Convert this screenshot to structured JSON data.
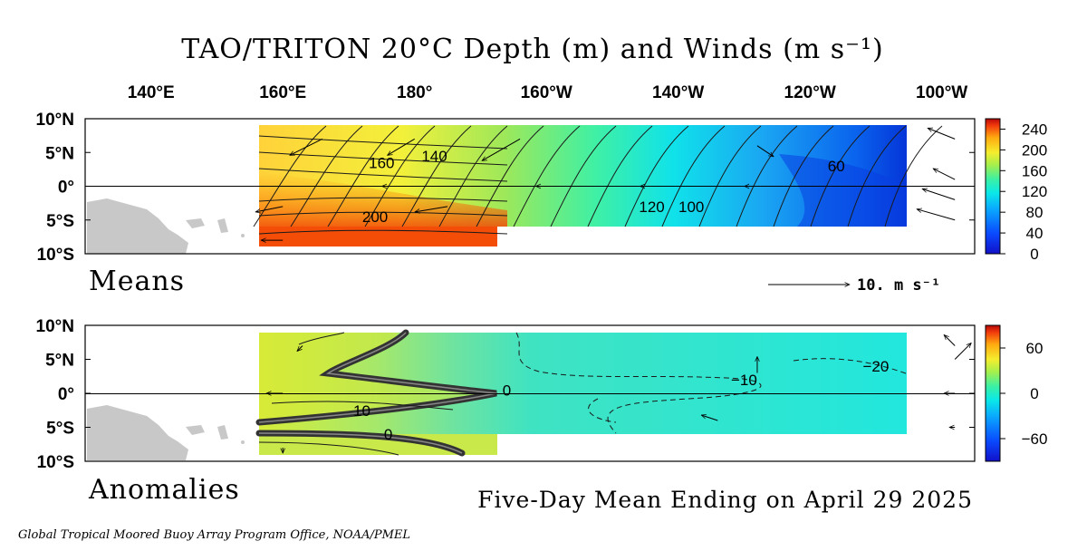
{
  "title": "TAO/TRITON 20°C Depth (m) and Winds (m s⁻¹)",
  "subtitle": "Five-Day Mean Ending on April 29 2025",
  "credit": "Global Tropical Moored Buoy Array Program Office, NOAA/PMEL",
  "wind_scale_label": "10.  m s⁻¹",
  "chart_data": [
    {
      "panel": "Means",
      "type": "heatmap",
      "title": "TAO/TRITON 20°C Depth (m) and Winds (m s⁻¹)",
      "xlabel": "",
      "ylabel": "",
      "x_ticks": [
        "140°E",
        "160°E",
        "180°",
        "160°W",
        "140°W",
        "120°W",
        "100°W"
      ],
      "y_ticks": [
        "10°N",
        "5°N",
        "0°",
        "5°S",
        "10°S"
      ],
      "colorbar_ticks": [
        "240",
        "200",
        "160",
        "120",
        "80",
        "40",
        "0"
      ],
      "colorbar_range": [
        0,
        260
      ],
      "x_range_lon_east": [
        130,
        265
      ],
      "y_range_lat": [
        -10,
        10
      ],
      "grid": false,
      "contour_labels": [
        {
          "text": "160",
          "lon": 175,
          "lat": 3.5
        },
        {
          "text": "140",
          "lon": 183,
          "lat": 4.5
        },
        {
          "text": "200",
          "lon": 174,
          "lat": -4.5
        },
        {
          "text": "120",
          "lon": 216,
          "lat": -3
        },
        {
          "text": "100",
          "lon": 222,
          "lat": -3
        },
        {
          "text": "60",
          "lon": 244,
          "lat": 3
        }
      ],
      "depth_field_lon": [
        160,
        250
      ],
      "depth_field_profile": [
        {
          "lon": 160,
          "north": 170,
          "equator": 180,
          "south": 225
        },
        {
          "lon": 180,
          "north": 150,
          "equator": 160,
          "south": 215
        },
        {
          "lon": 200,
          "north": 115,
          "equator": 140,
          "south": 175
        },
        {
          "lon": 220,
          "north": 95,
          "equator": 110,
          "south": 120
        },
        {
          "lon": 240,
          "north": 60,
          "equator": 75,
          "south": 90
        },
        {
          "lon": 250,
          "north": 40,
          "equator": 40,
          "south": 55
        }
      ],
      "winds": [
        {
          "lon": 166,
          "lat": 7,
          "u": -6,
          "v": -3
        },
        {
          "lon": 180,
          "lat": 7,
          "u": -5,
          "v": -3
        },
        {
          "lon": 196,
          "lat": 7,
          "u": -7,
          "v": -4
        },
        {
          "lon": 180,
          "lat": 0,
          "u": -6,
          "v": 0
        },
        {
          "lon": 205,
          "lat": 0,
          "u": -8,
          "v": 0
        },
        {
          "lon": 220,
          "lat": 0,
          "u": -7,
          "v": 0
        },
        {
          "lon": 235,
          "lat": 0,
          "u": -6,
          "v": 0
        },
        {
          "lon": 160,
          "lat": -3,
          "u": -5,
          "v": -1
        },
        {
          "lon": 185,
          "lat": -3,
          "u": -6,
          "v": -1
        },
        {
          "lon": 160,
          "lat": -8,
          "u": -4,
          "v": 0
        },
        {
          "lon": 232,
          "lat": 6,
          "u": 3,
          "v": -2
        },
        {
          "lon": 262,
          "lat": 7,
          "u": -5,
          "v": 2
        },
        {
          "lon": 262,
          "lat": 1,
          "u": -4,
          "v": 2
        },
        {
          "lon": 262,
          "lat": -2,
          "u": -6,
          "v": 2
        },
        {
          "lon": 262,
          "lat": -5,
          "u": -7,
          "v": 2
        }
      ]
    },
    {
      "panel": "Anomalies",
      "type": "heatmap",
      "xlabel": "",
      "ylabel": "",
      "x_ticks": [
        "140°E",
        "160°E",
        "180°",
        "160°W",
        "140°W",
        "120°W",
        "100°W"
      ],
      "y_ticks": [
        "10°N",
        "5°N",
        "0°",
        "5°S",
        "10°S"
      ],
      "colorbar_ticks": [
        "60",
        "0",
        "−60"
      ],
      "colorbar_range": [
        -90,
        90
      ],
      "x_range_lon_east": [
        130,
        265
      ],
      "y_range_lat": [
        -10,
        10
      ],
      "grid": false,
      "contour_labels": [
        {
          "text": "0",
          "lon": 194,
          "lat": 0.5
        },
        {
          "text": "10",
          "lon": 172,
          "lat": -2.5
        },
        {
          "text": "0",
          "lon": 176,
          "lat": -6
        },
        {
          "text": "−10",
          "lon": 230,
          "lat": 2
        },
        {
          "text": "−20",
          "lon": 250,
          "lat": 4
        }
      ],
      "winds": [
        {
          "lon": 163,
          "lat": 7,
          "u": -1,
          "v": -1
        },
        {
          "lon": 160,
          "lat": 0,
          "u": -3,
          "v": 0
        },
        {
          "lon": 160,
          "lat": -8,
          "u": 0,
          "v": -1
        },
        {
          "lon": 232,
          "lat": 3,
          "u": 0,
          "v": 3
        },
        {
          "lon": 226,
          "lat": -4,
          "u": -3,
          "v": 1
        },
        {
          "lon": 262,
          "lat": 7,
          "u": -2,
          "v": 2
        },
        {
          "lon": 262,
          "lat": 5,
          "u": 3,
          "v": 3
        },
        {
          "lon": 262,
          "lat": 0,
          "u": -2,
          "v": 0
        },
        {
          "lon": 262,
          "lat": -5,
          "u": -1,
          "v": 0
        }
      ]
    }
  ]
}
